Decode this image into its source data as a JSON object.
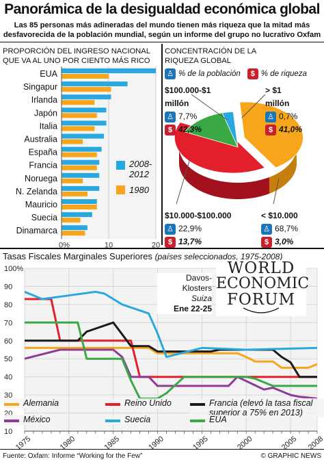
{
  "title": "Panorámica de la desigualdad económica global",
  "subtitle_line1": "Las 85 personas más adineradas del mundo tienen más riqueza que la mitad más",
  "subtitle_line2": "desfavorecida de la población mundial, según un informe del grupo no lucrativo Oxfam",
  "colors": {
    "blue": "#29a8e0",
    "orange": "#f7a51b",
    "green": "#3aa845",
    "red": "#e21f2b",
    "black": "#1a1a1a",
    "purple": "#8e3a96",
    "icon_blue": "#1b75bb",
    "icon_red": "#c9202e"
  },
  "bar_section": {
    "heading_line1": "PROPORCIÓN DEL INGRESO NACIONAL",
    "heading_line2": "QUE VA AL UNO POR CIENTO MÁS RICO",
    "legend": {
      "series_2008": "2008-2012",
      "series_1980": "1980"
    }
  },
  "pie_section": {
    "heading_line1": "CONCENTRACIÓN DE LA",
    "heading_line2": "RIQUEZA GLOBAL",
    "legend_population": "% de la población",
    "legend_wealth": "% de riqueza",
    "groups": [
      {
        "label": "$100.000-$1 millón",
        "population": "7,7%",
        "wealth": "42,3%"
      },
      {
        "label": "> $1 millón",
        "population": "0,7%",
        "wealth": "41,0%"
      },
      {
        "label": "$10.000-$100.000",
        "population": "22,9%",
        "wealth": "13,7%"
      },
      {
        "label": "< $10.000",
        "population": "68,7%",
        "wealth": "3,0%"
      }
    ]
  },
  "line_section": {
    "heading": "Tasas Fiscales Marginales Superiores",
    "heading_note": "(países seleccionados, 1975-2008)",
    "event": {
      "name": "Davos-Klosters",
      "country": "Suiza",
      "dates": "Ene 22-25"
    },
    "logo_lines": [
      "WORLD",
      "ECONOMIC",
      "FORUM"
    ],
    "legend_items": [
      {
        "name": "Alemania",
        "color": "#f7a51b"
      },
      {
        "name": "Reino Unido",
        "color": "#e21f2b"
      },
      {
        "name": "Francia (elevó la tasa fiscal superior a 75% en 2013)",
        "color": "#1a1a1a"
      },
      {
        "name": "México",
        "color": "#8e3a96"
      },
      {
        "name": "Suecia",
        "color": "#29a8e0"
      },
      {
        "name": "EUA",
        "color": "#3aa845"
      }
    ]
  },
  "footer": {
    "source": "Fuente: Oxfam: Informe “Working for the Few”",
    "credit": "© GRAPHIC NEWS"
  },
  "chart_data": [
    {
      "type": "bar",
      "title": "PROPORCIÓN DEL INGRESO NACIONAL QUE VA AL UNO POR CIENTO MÁS RICO",
      "categories": [
        "EUA",
        "Singapur",
        "Irlanda",
        "Japón",
        "Italia",
        "Australia",
        "España",
        "Francia",
        "Noruega",
        "N. Zelanda",
        "Mauricio",
        "Suecia",
        "Dinamarca"
      ],
      "series": [
        {
          "name": "2008-2012",
          "values": [
            20.0,
            14.0,
            10.5,
            9.5,
            9.5,
            9.0,
            8.5,
            8.0,
            8.0,
            8.0,
            7.5,
            6.5,
            5.5
          ]
        },
        {
          "name": "1980",
          "values": [
            10.0,
            10.5,
            7.0,
            7.5,
            7.0,
            4.5,
            7.5,
            7.5,
            4.5,
            5.5,
            7.5,
            4.0,
            5.0
          ]
        }
      ],
      "xlim": [
        0,
        20
      ],
      "xticks": [
        "0%",
        "10",
        "20"
      ]
    },
    {
      "type": "pie",
      "title": "CONCENTRACIÓN DE LA RIQUEZA GLOBAL",
      "categories": [
        "$100.000-$1 millón",
        "> $1 millón",
        "$10.000-$100.000",
        "< $10.000"
      ],
      "values": [
        42.3,
        41.0,
        13.7,
        3.0
      ]
    },
    {
      "type": "line",
      "title": "Tasas Fiscales Marginales Superiores",
      "xlim": [
        1975,
        2008
      ],
      "ylim": [
        10,
        100
      ],
      "xticks": [
        1975,
        1980,
        1985,
        1990,
        1995,
        2000,
        2005,
        2008
      ],
      "yticks": [
        "10",
        "20",
        "30",
        "40",
        "50",
        "60",
        "70",
        "80",
        "90",
        "100%"
      ],
      "series": [
        {
          "name": "Alemania",
          "points": [
            [
              1975,
              56
            ],
            [
              1989,
              56
            ],
            [
              1990,
              53
            ],
            [
              1999,
              53
            ],
            [
              2000,
              51
            ],
            [
              2001,
              48.5
            ],
            [
              2003,
              48.5
            ],
            [
              2004,
              45
            ],
            [
              2007,
              45
            ],
            [
              2008,
              47
            ]
          ]
        },
        {
          "name": "Reino Unido",
          "points": [
            [
              1975,
              83
            ],
            [
              1978,
              83
            ],
            [
              1979,
              60
            ],
            [
              1987,
              60
            ],
            [
              1988,
              40
            ],
            [
              2008,
              40
            ]
          ]
        },
        {
          "name": "Francia",
          "points": [
            [
              1975,
              60
            ],
            [
              1981,
              60
            ],
            [
              1982,
              65
            ],
            [
              1985,
              70
            ],
            [
              1987,
              57
            ],
            [
              1989,
              57
            ],
            [
              1990,
              54
            ],
            [
              1996,
              54
            ],
            [
              1997,
              55
            ],
            [
              2003,
              55
            ],
            [
              2004,
              51
            ],
            [
              2005,
              48
            ],
            [
              2006,
              40
            ],
            [
              2008,
              40
            ]
          ]
        },
        {
          "name": "México",
          "points": [
            [
              1975,
              50
            ],
            [
              1979,
              55
            ],
            [
              1985,
              55
            ],
            [
              1986,
              51
            ],
            [
              1987,
              40
            ],
            [
              1989,
              40
            ],
            [
              1990,
              35
            ],
            [
              1998,
              35
            ],
            [
              1999,
              40
            ],
            [
              2002,
              33
            ],
            [
              2003,
              34
            ],
            [
              2005,
              30
            ],
            [
              2006,
              29
            ],
            [
              2008,
              28
            ]
          ]
        },
        {
          "name": "Suecia",
          "points": [
            [
              1975,
              87
            ],
            [
              1977,
              83
            ],
            [
              1980,
              85
            ],
            [
              1983,
              87
            ],
            [
              1984,
              86
            ],
            [
              1986,
              80
            ],
            [
              1989,
              75
            ],
            [
              1990,
              64
            ],
            [
              1991,
              51
            ],
            [
              1995,
              56
            ],
            [
              2000,
              55
            ],
            [
              2008,
              56
            ]
          ]
        },
        {
          "name": "EUA",
          "points": [
            [
              1975,
              70
            ],
            [
              1981,
              70
            ],
            [
              1982,
              50
            ],
            [
              1986,
              50
            ],
            [
              1987,
              38
            ],
            [
              1988,
              28
            ],
            [
              1990,
              28
            ],
            [
              1991,
              31
            ],
            [
              1993,
              40
            ],
            [
              2000,
              40
            ],
            [
              2001,
              39
            ],
            [
              2003,
              35
            ],
            [
              2008,
              35
            ]
          ]
        }
      ]
    }
  ]
}
